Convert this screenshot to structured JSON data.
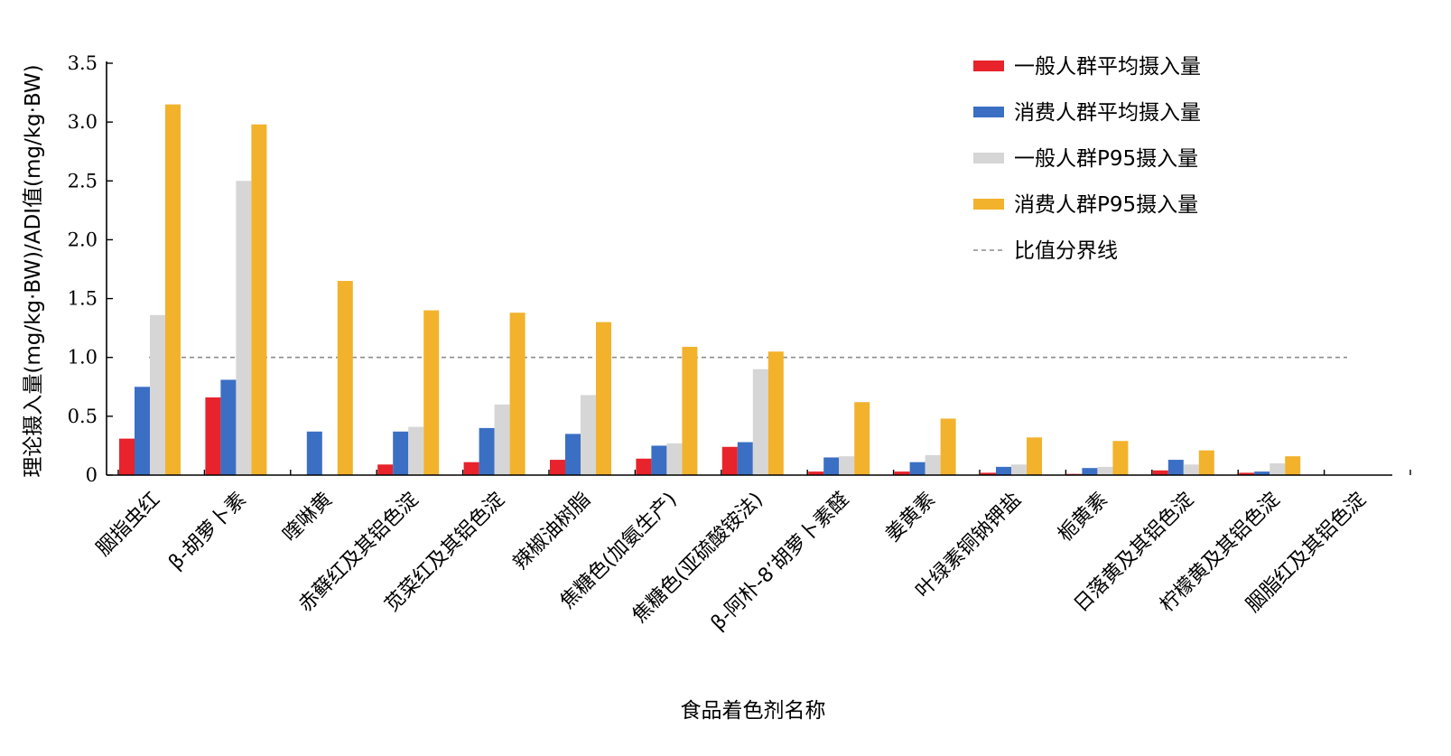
{
  "chart_data": {
    "type": "bar",
    "title": "",
    "xlabel": "食品着色剂名称",
    "ylabel": "理论摄入量(mg/kg·BW)/ADI值(mg/kg·BW)",
    "ylim": [
      0,
      3.5
    ],
    "yticks": [
      "0",
      "0.5",
      "1.0",
      "1.5",
      "2.0",
      "2.5",
      "3.0",
      "3.5"
    ],
    "grid": false,
    "legend_position": "top-right",
    "categories": [
      "胭指虫红",
      "β-胡萝卜素",
      "喹啉黄",
      "赤藓红及其铝色淀",
      "苋菜红及其铝色淀",
      "辣椒油树脂",
      "焦糖色(加氨生产)",
      "焦糖色(亚硫酸铵法)",
      "β-阿朴-8’胡萝卜素醛",
      "姜黄素",
      "叶绿素铜钠钾盐",
      "栀黄素",
      "日落黄及其铝色淀",
      "柠檬黄及其铝色淀",
      "胭脂红及其铝色淀"
    ],
    "series": [
      {
        "name": "一般人群平均摄入量",
        "color": "#e8232b",
        "values": [
          0.31,
          0.66,
          0,
          0.09,
          0.11,
          0.13,
          0.14,
          0.24,
          0.03,
          0.03,
          0.02,
          0.01,
          0.04,
          0.02,
          0
        ]
      },
      {
        "name": "消费人群平均摄入量",
        "color": "#3a6fc4",
        "values": [
          0.75,
          0.81,
          0.37,
          0.37,
          0.4,
          0.35,
          0.25,
          0.28,
          0.15,
          0.11,
          0.07,
          0.06,
          0.13,
          0.03,
          0
        ]
      },
      {
        "name": "一般人群P95摄入量",
        "color": "#d6d6d6",
        "values": [
          1.36,
          2.5,
          0,
          0.41,
          0.6,
          0.68,
          0.27,
          0.9,
          0.16,
          0.17,
          0.09,
          0.07,
          0.09,
          0.1,
          0
        ]
      },
      {
        "name": "消费人群P95摄入量",
        "color": "#f2b22c",
        "values": [
          3.15,
          2.98,
          1.65,
          1.4,
          1.38,
          1.3,
          1.09,
          1.05,
          0.62,
          0.48,
          0.32,
          0.29,
          0.21,
          0.16,
          0
        ]
      }
    ],
    "reference_line": {
      "name": "比值分界线",
      "value": 1.0,
      "color": "#8c8c8c"
    }
  }
}
